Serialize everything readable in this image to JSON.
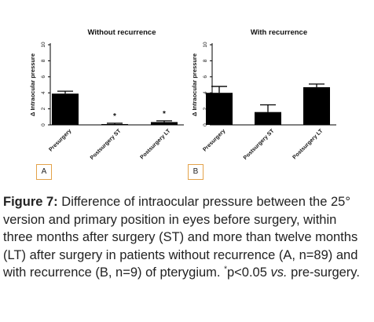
{
  "chart_data": [
    {
      "type": "bar",
      "title": "Without recurrence",
      "ylabel": "Δ Intraocular pressure",
      "ylim": [
        0,
        10
      ],
      "yticks": [
        0,
        2,
        4,
        6,
        8,
        10
      ],
      "categories": [
        "Presurgery",
        "Postsurgery ST",
        "Postsurgery LT"
      ],
      "values": [
        3.9,
        0.1,
        0.35
      ],
      "errors": [
        0.3,
        0.1,
        0.15
      ],
      "annotations": [
        "",
        "*",
        "*"
      ],
      "bar_color": "#000000",
      "panel_label": "A"
    },
    {
      "type": "bar",
      "title": "With recurrence",
      "ylabel": "Δ Intraocular pressure",
      "ylim": [
        0,
        10
      ],
      "yticks": [
        0,
        2,
        4,
        6,
        8,
        10
      ],
      "categories": [
        "Presurgery",
        "Postsurgery ST",
        "Postsurgery LT"
      ],
      "values": [
        4.0,
        1.6,
        4.7
      ],
      "errors": [
        0.8,
        0.9,
        0.4
      ],
      "annotations": [
        "",
        "",
        ""
      ],
      "bar_color": "#000000",
      "panel_label": "B"
    }
  ],
  "caption": {
    "label": "Figure 7:",
    "text_before_sup": " Difference of intraocular pressure between the 25° version and primary position in eyes before surgery, within three months after surgery (ST) and more than twelve months (LT) after surgery in patients without recurrence (A, n=89) and with recurrence (B, n=9) of pterygium. ",
    "sup": "*",
    "text_p": "p<0.05 ",
    "text_vs": "vs.",
    "text_after": " pre-surgery."
  },
  "colors": {
    "panel_letter_border": "#e3a24a",
    "text": "#222222"
  }
}
